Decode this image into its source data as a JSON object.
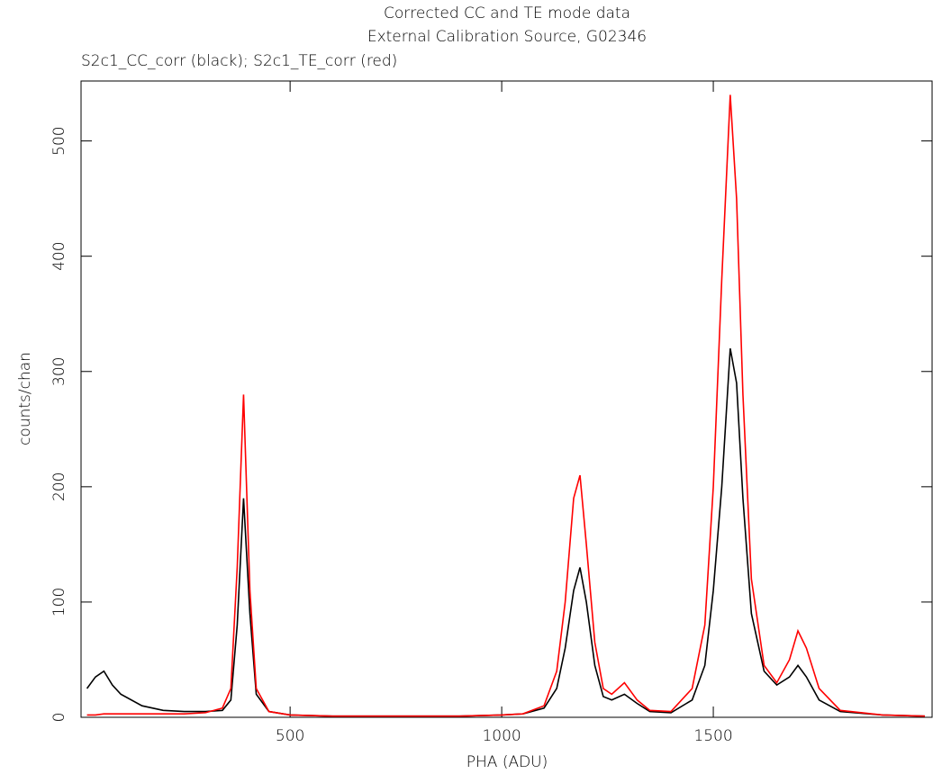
{
  "chart_data": {
    "type": "line",
    "title": "Corrected CC and TE mode data",
    "subtitle": "External Calibration Source, G02346",
    "annotation": "S2c1_CC_corr (black); S2c1_TE_corr (red)",
    "x_label": "PHA (ADU)",
    "y_label": "counts/chan",
    "xlim": [
      6,
      2017
    ],
    "ylim": [
      0,
      552
    ],
    "xticks": [
      500,
      1000,
      1500
    ],
    "yticks": [
      0,
      100,
      200,
      300,
      400,
      500
    ],
    "x": [
      20,
      40,
      60,
      80,
      100,
      150,
      200,
      250,
      300,
      340,
      360,
      375,
      390,
      405,
      420,
      450,
      500,
      600,
      700,
      800,
      900,
      1000,
      1050,
      1100,
      1130,
      1150,
      1170,
      1185,
      1200,
      1220,
      1240,
      1260,
      1290,
      1320,
      1350,
      1400,
      1450,
      1480,
      1500,
      1520,
      1540,
      1555,
      1570,
      1590,
      1620,
      1650,
      1680,
      1700,
      1720,
      1750,
      1800,
      1900,
      2000
    ],
    "series": [
      {
        "color": "#000000",
        "values": [
          25,
          35,
          40,
          28,
          20,
          10,
          6,
          5,
          5,
          6,
          15,
          80,
          190,
          90,
          20,
          5,
          2,
          1,
          1,
          1,
          1,
          2,
          3,
          8,
          25,
          60,
          110,
          130,
          100,
          45,
          18,
          15,
          20,
          12,
          5,
          4,
          15,
          45,
          110,
          200,
          320,
          290,
          190,
          90,
          40,
          28,
          35,
          45,
          35,
          15,
          5,
          2,
          1
        ]
      },
      {
        "color": "#ff0000",
        "values": [
          2,
          2,
          3,
          3,
          3,
          3,
          3,
          3,
          4,
          8,
          25,
          130,
          280,
          110,
          25,
          5,
          2,
          1,
          1,
          1,
          1,
          2,
          3,
          10,
          40,
          100,
          190,
          210,
          150,
          65,
          25,
          20,
          30,
          15,
          6,
          5,
          25,
          80,
          200,
          380,
          540,
          450,
          280,
          120,
          45,
          30,
          50,
          75,
          60,
          25,
          6,
          2,
          1
        ]
      }
    ]
  }
}
